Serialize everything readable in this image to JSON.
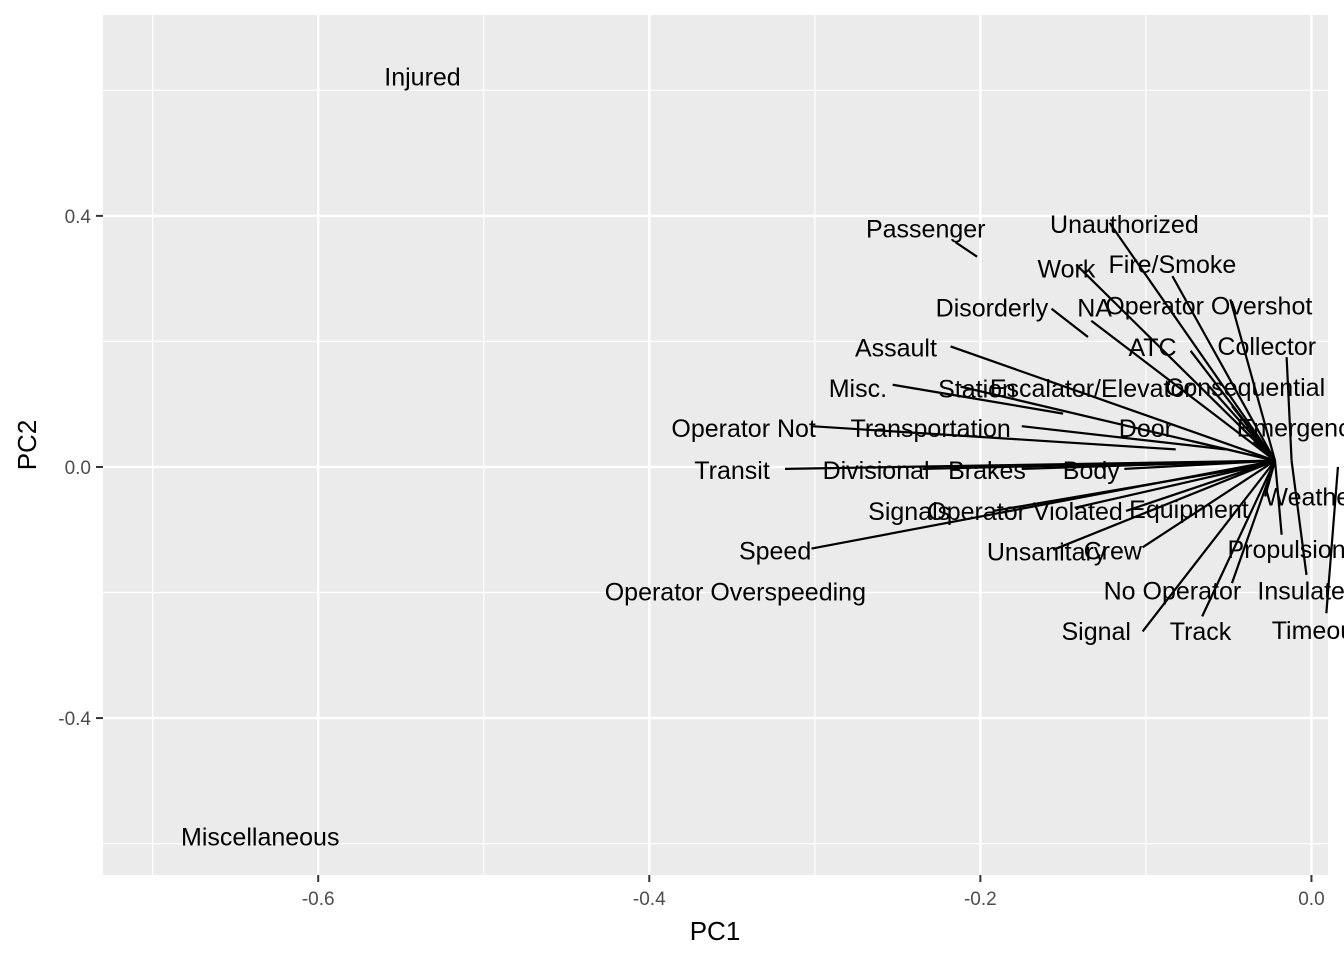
{
  "chart_data": {
    "type": "scatter",
    "title": "",
    "xlabel": "PC1",
    "ylabel": "PC2",
    "xlim": [
      -0.73,
      0.01
    ],
    "ylim": [
      -0.65,
      0.72
    ],
    "x_ticks": [
      {
        "value": -0.6,
        "label": "-0.6"
      },
      {
        "value": -0.4,
        "label": "-0.4"
      },
      {
        "value": -0.2,
        "label": "-0.2"
      },
      {
        "value": 0.0,
        "label": "0.0"
      }
    ],
    "y_ticks": [
      {
        "value": 0.4,
        "label": "0.4"
      },
      {
        "value": 0.0,
        "label": "0.0"
      },
      {
        "value": -0.4,
        "label": "-0.4"
      }
    ],
    "grid": true,
    "points": [
      {
        "label": "Injured",
        "x": -0.537,
        "y": 0.622,
        "lx": -0.537,
        "ly": 0.622
      },
      {
        "label": "Miscellaneous",
        "x": -0.635,
        "y": -0.589,
        "lx": -0.635,
        "ly": -0.589
      },
      {
        "label": "Passenger",
        "x": -0.201,
        "y": 0.336,
        "lx": -0.233,
        "ly": 0.38
      },
      {
        "label": "Unauthorized",
        "x": -0.015,
        "y": 0.01,
        "lx": -0.113,
        "ly": 0.387
      },
      {
        "label": "Work",
        "x": -0.018,
        "y": 0.01,
        "lx": -0.148,
        "ly": 0.316
      },
      {
        "label": "Fire/Smoke",
        "x": -0.02,
        "y": 0.01,
        "lx": -0.084,
        "ly": 0.323
      },
      {
        "label": "Disorderly",
        "x": -0.134,
        "y": 0.207,
        "lx": -0.193,
        "ly": 0.254
      },
      {
        "label": "NA",
        "x": -0.02,
        "y": 0.01,
        "lx": -0.131,
        "ly": 0.254
      },
      {
        "label": "Operator Overshot",
        "x": -0.03,
        "y": 0.01,
        "lx": -0.062,
        "ly": 0.257
      },
      {
        "label": "Assault",
        "x": -0.022,
        "y": 0.01,
        "lx": -0.251,
        "ly": 0.19
      },
      {
        "label": "ATC",
        "x": -0.02,
        "y": 0.01,
        "lx": -0.096,
        "ly": 0.191
      },
      {
        "label": "Collector",
        "x": -0.01,
        "y": 0.01,
        "lx": -0.027,
        "ly": 0.193
      },
      {
        "label": "Misc.",
        "x": -0.149,
        "y": 0.083,
        "lx": -0.274,
        "ly": 0.126
      },
      {
        "label": "Station",
        "x": -0.22,
        "y": 0.125,
        "lx": -0.202,
        "ly": 0.125
      },
      {
        "label": "Escalator/Elevator",
        "x": -0.03,
        "y": 0.01,
        "lx": -0.133,
        "ly": 0.126
      },
      {
        "label": "Consequential",
        "x": -0.03,
        "y": 0.01,
        "lx": -0.04,
        "ly": 0.127
      },
      {
        "label": "Operator Not",
        "x": -0.022,
        "y": 0.01,
        "lx": -0.343,
        "ly": 0.062
      },
      {
        "label": "Transportation",
        "x": -0.05,
        "y": 0.03,
        "lx": -0.23,
        "ly": 0.062
      },
      {
        "label": "Door",
        "x": -0.02,
        "y": 0.01,
        "lx": -0.1,
        "ly": 0.062
      },
      {
        "label": "Emergency",
        "x": -0.01,
        "y": 0.01,
        "lx": -0.007,
        "ly": 0.063
      },
      {
        "label": "Transit",
        "x": -0.022,
        "y": 0.01,
        "lx": -0.35,
        "ly": -0.005
      },
      {
        "label": "Divisional",
        "x": -0.022,
        "y": 0.01,
        "lx": -0.263,
        "ly": -0.005
      },
      {
        "label": "Brakes",
        "x": -0.022,
        "y": 0.01,
        "lx": -0.196,
        "ly": -0.005
      },
      {
        "label": "Body",
        "x": -0.022,
        "y": 0.01,
        "lx": -0.133,
        "ly": -0.005
      },
      {
        "label": "Weather",
        "x": -0.035,
        "y": 0.01,
        "lx": 0.0,
        "ly": -0.047
      },
      {
        "label": "Signals",
        "x": -0.022,
        "y": 0.01,
        "lx": -0.243,
        "ly": -0.07
      },
      {
        "label": "Operator Violated",
        "x": -0.022,
        "y": 0.01,
        "lx": -0.173,
        "ly": -0.07
      },
      {
        "label": "Equipment",
        "x": -0.045,
        "y": 0.0,
        "lx": -0.074,
        "ly": -0.067
      },
      {
        "label": "Speed",
        "x": -0.022,
        "y": 0.01,
        "lx": -0.324,
        "ly": -0.133
      },
      {
        "label": "Unsanitary",
        "x": -0.022,
        "y": 0.01,
        "lx": -0.16,
        "ly": -0.135
      },
      {
        "label": "Crew",
        "x": -0.022,
        "y": 0.01,
        "lx": -0.12,
        "ly": -0.133
      },
      {
        "label": "Propulsion",
        "x": -0.01,
        "y": 0.01,
        "lx": -0.015,
        "ly": -0.131
      },
      {
        "label": "Operator Overspeeding",
        "x": -0.348,
        "y": -0.198,
        "lx": -0.348,
        "ly": -0.198
      },
      {
        "label": "No Operator",
        "x": -0.022,
        "y": 0.01,
        "lx": -0.084,
        "ly": -0.197
      },
      {
        "label": "Insulated",
        "x": -0.01,
        "y": 0.01,
        "lx": -0.002,
        "ly": -0.197
      },
      {
        "label": "Signal",
        "x": -0.022,
        "y": 0.01,
        "lx": -0.13,
        "ly": -0.261
      },
      {
        "label": "Track",
        "x": -0.022,
        "y": 0.01,
        "lx": -0.067,
        "ly": -0.261
      },
      {
        "label": "Timeout",
        "x": 0.01,
        "y": 0.0,
        "lx": 0.003,
        "ly": -0.26
      }
    ],
    "segments": [
      {
        "from": [
          -0.202,
          0.335
        ],
        "to": [
          -0.215,
          0.358
        ]
      },
      {
        "from": [
          -0.022,
          0.01
        ],
        "to": [
          -0.122,
          0.389
        ]
      },
      {
        "from": [
          -0.022,
          0.01
        ],
        "to": [
          -0.142,
          0.322
        ]
      },
      {
        "from": [
          -0.022,
          0.01
        ],
        "to": [
          -0.084,
          0.304
        ]
      },
      {
        "from": [
          -0.135,
          0.207
        ],
        "to": [
          -0.157,
          0.252
        ]
      },
      {
        "from": [
          -0.022,
          0.01
        ],
        "to": [
          -0.133,
          0.233
        ]
      },
      {
        "from": [
          -0.022,
          0.01
        ],
        "to": [
          -0.049,
          0.267
        ]
      },
      {
        "from": [
          -0.022,
          0.01
        ],
        "to": [
          -0.218,
          0.192
        ]
      },
      {
        "from": [
          -0.022,
          0.01
        ],
        "to": [
          -0.073,
          0.185
        ]
      },
      {
        "from": [
          -0.012,
          0.01
        ],
        "to": [
          -0.015,
          0.175
        ]
      },
      {
        "from": [
          -0.15,
          0.085
        ],
        "to": [
          -0.253,
          0.131
        ]
      },
      {
        "from": [
          -0.022,
          0.01
        ],
        "to": [
          -0.212,
          0.128
        ]
      },
      {
        "from": [
          -0.022,
          0.01
        ],
        "to": [
          -0.062,
          0.129
        ]
      },
      {
        "from": [
          -0.022,
          0.01
        ],
        "to": [
          -0.048,
          0.097
        ]
      },
      {
        "from": [
          -0.082,
          0.028
        ],
        "to": [
          -0.302,
          0.065
        ]
      },
      {
        "from": [
          -0.052,
          0.028
        ],
        "to": [
          -0.175,
          0.065
        ]
      },
      {
        "from": [
          -0.022,
          0.01
        ],
        "to": [
          -0.072,
          0.041
        ]
      },
      {
        "from": [
          -0.022,
          0.01
        ],
        "to": [
          -0.035,
          0.04
        ]
      },
      {
        "from": [
          -0.022,
          0.01
        ],
        "to": [
          -0.318,
          -0.003
        ]
      },
      {
        "from": [
          -0.022,
          0.01
        ],
        "to": [
          -0.235,
          -0.003
        ]
      },
      {
        "from": [
          -0.022,
          0.01
        ],
        "to": [
          -0.175,
          -0.003
        ]
      },
      {
        "from": [
          -0.022,
          0.01
        ],
        "to": [
          -0.113,
          -0.003
        ]
      },
      {
        "from": [
          -0.022,
          0.01
        ],
        "to": [
          -0.028,
          -0.047
        ]
      },
      {
        "from": [
          -0.03,
          0.003
        ],
        "to": [
          -0.192,
          -0.07
        ]
      },
      {
        "from": [
          -0.03,
          0.003
        ],
        "to": [
          -0.143,
          -0.065
        ]
      },
      {
        "from": [
          -0.022,
          0.01
        ],
        "to": [
          -0.112,
          -0.07
        ]
      },
      {
        "from": [
          -0.022,
          0.01
        ],
        "to": [
          -0.302,
          -0.13
        ]
      },
      {
        "from": [
          -0.022,
          0.01
        ],
        "to": [
          -0.156,
          -0.132
        ]
      },
      {
        "from": [
          -0.022,
          0.01
        ],
        "to": [
          -0.102,
          -0.128
        ]
      },
      {
        "from": [
          -0.022,
          0.01
        ],
        "to": [
          -0.018,
          -0.108
        ]
      },
      {
        "from": [
          -0.022,
          0.01
        ],
        "to": [
          -0.048,
          -0.185
        ]
      },
      {
        "from": [
          -0.012,
          0.01
        ],
        "to": [
          -0.003,
          -0.172
        ]
      },
      {
        "from": [
          -0.022,
          0.01
        ],
        "to": [
          -0.102,
          -0.262
        ]
      },
      {
        "from": [
          -0.022,
          0.01
        ],
        "to": [
          -0.066,
          -0.238
        ]
      },
      {
        "from": [
          0.016,
          0.0
        ],
        "to": [
          0.009,
          -0.233
        ]
      }
    ]
  }
}
